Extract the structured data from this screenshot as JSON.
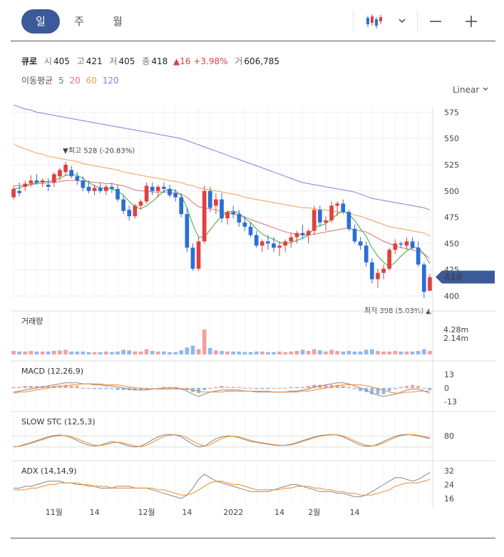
{
  "tabs": {
    "day": "일",
    "week": "주",
    "month": "월"
  },
  "quote": {
    "name": "큐로",
    "open_label": "시",
    "open": "405",
    "high_label": "고",
    "high": "421",
    "low_label": "저",
    "low": "405",
    "close_label": "종",
    "close": "418",
    "change": "▲16 +3.98%",
    "volume_label": "거",
    "volume": "606,785"
  },
  "ma_legend": {
    "title": "이동평균",
    "ma5": "5",
    "ma20": "20",
    "ma60": "60",
    "ma120": "120"
  },
  "scale_mode": "Linear",
  "colors": {
    "up": "#e04040",
    "down": "#2a6fd6",
    "ma5": "#3aaa3a",
    "ma20": "#e07070",
    "ma60": "#f0a050",
    "ma120": "#a070e0",
    "accent": "#3c5a99"
  },
  "chart_data": [
    {
      "type": "candlestick",
      "x_labels": [
        "11월",
        "14",
        "12월",
        "14",
        "2022",
        "14",
        "2월",
        "14"
      ],
      "ylim": [
        398,
        580
      ],
      "y_ticks": [
        400,
        425,
        450,
        475,
        500,
        525,
        550,
        575
      ],
      "current_price": "418",
      "high_marker": "▼최고 528 (-20.83%)",
      "low_marker": "최저 398 (5.03%) ▲",
      "ohlc": [
        [
          494,
          505,
          492,
          502
        ],
        [
          500,
          508,
          495,
          498
        ],
        [
          504,
          510,
          500,
          507
        ],
        [
          507,
          515,
          504,
          510
        ],
        [
          510,
          516,
          506,
          508
        ],
        [
          508,
          512,
          504,
          510
        ],
        [
          506,
          512,
          500,
          504
        ],
        [
          508,
          518,
          504,
          516
        ],
        [
          514,
          522,
          510,
          520
        ],
        [
          518,
          528,
          514,
          525
        ],
        [
          520,
          524,
          512,
          514
        ],
        [
          514,
          518,
          506,
          510
        ],
        [
          510,
          514,
          500,
          503
        ],
        [
          504,
          510,
          498,
          500
        ],
        [
          500,
          506,
          496,
          503
        ],
        [
          503,
          508,
          498,
          500
        ],
        [
          500,
          506,
          496,
          504
        ],
        [
          504,
          508,
          498,
          502
        ],
        [
          502,
          506,
          490,
          492
        ],
        [
          492,
          496,
          478,
          481
        ],
        [
          482,
          486,
          472,
          476
        ],
        [
          476,
          488,
          474,
          486
        ],
        [
          486,
          492,
          482,
          490
        ],
        [
          490,
          508,
          488,
          505
        ],
        [
          504,
          508,
          496,
          500
        ],
        [
          500,
          506,
          494,
          504
        ],
        [
          504,
          508,
          498,
          502
        ],
        [
          502,
          506,
          494,
          496
        ],
        [
          498,
          502,
          490,
          494
        ],
        [
          494,
          498,
          475,
          478
        ],
        [
          478,
          484,
          442,
          446
        ],
        [
          446,
          450,
          424,
          426
        ],
        [
          426,
          456,
          424,
          452
        ],
        [
          452,
          505,
          450,
          500
        ],
        [
          500,
          504,
          480,
          484
        ],
        [
          486,
          498,
          478,
          492
        ],
        [
          492,
          498,
          470,
          474
        ],
        [
          474,
          482,
          468,
          480
        ],
        [
          480,
          486,
          474,
          478
        ],
        [
          478,
          482,
          466,
          470
        ],
        [
          470,
          476,
          462,
          466
        ],
        [
          466,
          470,
          456,
          458
        ],
        [
          458,
          462,
          446,
          448
        ],
        [
          448,
          454,
          442,
          452
        ],
        [
          452,
          458,
          444,
          450
        ],
        [
          450,
          456,
          442,
          446
        ],
        [
          446,
          452,
          438,
          448
        ],
        [
          448,
          454,
          442,
          452
        ],
        [
          452,
          460,
          446,
          456
        ],
        [
          456,
          462,
          450,
          460
        ],
        [
          460,
          468,
          454,
          458
        ],
        [
          458,
          464,
          450,
          462
        ],
        [
          462,
          486,
          458,
          482
        ],
        [
          482,
          486,
          466,
          470
        ],
        [
          470,
          476,
          462,
          472
        ],
        [
          472,
          490,
          470,
          486
        ],
        [
          486,
          490,
          476,
          488
        ],
        [
          488,
          492,
          478,
          480
        ],
        [
          480,
          482,
          462,
          464
        ],
        [
          464,
          468,
          450,
          452
        ],
        [
          452,
          456,
          444,
          448
        ],
        [
          448,
          452,
          428,
          432
        ],
        [
          432,
          436,
          412,
          416
        ],
        [
          416,
          426,
          408,
          422
        ],
        [
          422,
          430,
          416,
          426
        ],
        [
          426,
          446,
          424,
          444
        ],
        [
          444,
          454,
          440,
          450
        ],
        [
          450,
          452,
          446,
          449
        ],
        [
          448,
          456,
          444,
          452
        ],
        [
          452,
          456,
          444,
          446
        ],
        [
          446,
          452,
          428,
          430
        ],
        [
          430,
          432,
          398,
          404
        ],
        [
          405,
          421,
          405,
          418
        ]
      ],
      "ma5": [
        502,
        503,
        505,
        506,
        508,
        509,
        509,
        510,
        512,
        515,
        516,
        515,
        512,
        508,
        505,
        503,
        502,
        502,
        500,
        496,
        490,
        485,
        483,
        486,
        490,
        495,
        500,
        502,
        500,
        496,
        484,
        468,
        456,
        456,
        463,
        470,
        476,
        480,
        481,
        479,
        474,
        470,
        464,
        459,
        456,
        454,
        451,
        450,
        451,
        453,
        455,
        458,
        465,
        467,
        469,
        473,
        478,
        481,
        478,
        472,
        464,
        457,
        446,
        438,
        432,
        428,
        432,
        438,
        443,
        446,
        446,
        440,
        431
      ],
      "ma20": [
        505,
        505,
        506,
        506,
        507,
        507,
        508,
        508,
        509,
        510,
        510,
        510,
        509,
        509,
        508,
        508,
        507,
        507,
        506,
        505,
        503,
        501,
        500,
        500,
        499,
        499,
        499,
        499,
        498,
        497,
        494,
        489,
        485,
        484,
        483,
        482,
        480,
        479,
        478,
        477,
        475,
        473,
        471,
        469,
        467,
        465,
        463,
        461,
        460,
        459,
        458,
        458,
        459,
        460,
        461,
        462,
        463,
        464,
        464,
        463,
        462,
        461,
        458,
        455,
        452,
        450,
        448,
        446,
        445,
        444,
        442,
        440,
        436
      ],
      "ma60": [
        545,
        542,
        540,
        538,
        536,
        535,
        533,
        532,
        531,
        530,
        529,
        528,
        526,
        525,
        524,
        523,
        522,
        521,
        520,
        518,
        517,
        516,
        515,
        514,
        513,
        512,
        511,
        510,
        509,
        508,
        506,
        505,
        503,
        502,
        501,
        500,
        499,
        498,
        497,
        496,
        494,
        493,
        492,
        491,
        490,
        489,
        488,
        487,
        486,
        485,
        484,
        484,
        483,
        482,
        482,
        481,
        480,
        480,
        479,
        477,
        476,
        474,
        472,
        470,
        468,
        466,
        465,
        464,
        463,
        462,
        461,
        460,
        457
      ],
      "ma120": [
        582,
        580,
        578,
        577,
        575,
        574,
        573,
        572,
        571,
        570,
        569,
        568,
        567,
        566,
        565,
        564,
        563,
        562,
        561,
        560,
        559,
        558,
        557,
        556,
        555,
        554,
        553,
        552,
        551,
        550,
        548,
        546,
        544,
        542,
        540,
        538,
        536,
        534,
        532,
        530,
        528,
        526,
        524,
        522,
        520,
        518,
        516,
        514,
        512,
        510,
        508,
        507,
        506,
        505,
        504,
        503,
        502,
        501,
        500,
        499,
        497,
        495,
        493,
        492,
        491,
        490,
        489,
        488,
        487,
        486,
        485,
        484,
        482
      ]
    },
    {
      "type": "bar",
      "title": "거래량",
      "y_ticks": [
        "4.28m",
        "2.14m"
      ],
      "values": [
        0.6,
        0.5,
        0.5,
        0.6,
        0.5,
        0.5,
        0.5,
        0.6,
        0.7,
        0.8,
        0.5,
        0.5,
        0.5,
        0.4,
        0.4,
        0.4,
        0.5,
        0.4,
        0.5,
        0.8,
        0.7,
        0.5,
        0.5,
        0.9,
        0.6,
        0.5,
        0.5,
        0.4,
        0.4,
        0.7,
        1.2,
        1.5,
        0.9,
        4.28,
        1.1,
        0.7,
        0.6,
        0.5,
        0.5,
        0.5,
        0.4,
        0.4,
        0.5,
        0.5,
        0.4,
        0.4,
        0.5,
        0.4,
        0.5,
        0.6,
        0.8,
        0.6,
        0.9,
        0.7,
        0.5,
        0.8,
        0.6,
        0.5,
        0.6,
        0.5,
        0.5,
        0.8,
        0.9,
        0.6,
        0.5,
        0.5,
        0.6,
        0.5,
        0.5,
        0.5,
        0.6,
        0.9,
        0.6
      ]
    },
    {
      "type": "line",
      "title": "MACD (12,26,9)",
      "y_ticks": [
        13,
        0,
        -13
      ],
      "macd": [
        -4,
        -3,
        -2,
        -1,
        0,
        1,
        2,
        3,
        4,
        5,
        5,
        5,
        4,
        4,
        3,
        3,
        2,
        2,
        1,
        0,
        -1,
        -2,
        -2,
        -2,
        -1,
        -1,
        0,
        0,
        0,
        -1,
        -3,
        -6,
        -8,
        -6,
        -4,
        -3,
        -2,
        -2,
        -2,
        -2,
        -3,
        -3,
        -4,
        -4,
        -4,
        -4,
        -4,
        -4,
        -3,
        -3,
        -2,
        -1,
        1,
        2,
        3,
        4,
        5,
        5,
        4,
        2,
        0,
        -2,
        -5,
        -7,
        -8,
        -7,
        -6,
        -4,
        -2,
        -1,
        -1,
        -3,
        -5
      ],
      "signal": [
        -5,
        -4,
        -4,
        -3,
        -2,
        -1,
        0,
        1,
        2,
        2,
        3,
        3,
        4,
        4,
        4,
        4,
        3,
        3,
        3,
        2,
        1,
        0,
        0,
        -1,
        -1,
        -1,
        -1,
        -1,
        -1,
        -1,
        -1,
        -2,
        -3,
        -4,
        -4,
        -4,
        -4,
        -3,
        -3,
        -3,
        -3,
        -3,
        -3,
        -3,
        -3,
        -4,
        -4,
        -4,
        -4,
        -4,
        -3,
        -3,
        -2,
        -1,
        0,
        1,
        2,
        3,
        3,
        3,
        3,
        2,
        1,
        -1,
        -2,
        -4,
        -5,
        -5,
        -4,
        -4,
        -3,
        -3,
        -3
      ]
    },
    {
      "type": "line",
      "title": "SLOW STC (12,5,3)",
      "y_ticks": [
        80
      ],
      "k": [
        20,
        25,
        35,
        45,
        55,
        65,
        75,
        82,
        85,
        80,
        70,
        55,
        40,
        30,
        25,
        30,
        40,
        50,
        45,
        35,
        25,
        20,
        25,
        40,
        60,
        75,
        85,
        88,
        85,
        75,
        55,
        35,
        20,
        25,
        45,
        65,
        75,
        80,
        78,
        70,
        60,
        50,
        45,
        40,
        35,
        30,
        28,
        30,
        35,
        45,
        55,
        65,
        75,
        82,
        85,
        88,
        85,
        75,
        60,
        45,
        30,
        25,
        25,
        35,
        50,
        65,
        78,
        85,
        88,
        85,
        80,
        72,
        65
      ],
      "d": [
        22,
        24,
        30,
        40,
        50,
        60,
        70,
        78,
        82,
        82,
        76,
        65,
        52,
        40,
        30,
        28,
        33,
        42,
        46,
        42,
        34,
        26,
        22,
        30,
        45,
        62,
        76,
        84,
        86,
        82,
        70,
        52,
        35,
        25,
        32,
        50,
        66,
        76,
        79,
        75,
        66,
        56,
        48,
        43,
        38,
        33,
        30,
        29,
        32,
        40,
        50,
        60,
        70,
        78,
        83,
        86,
        86,
        80,
        68,
        53,
        40,
        30,
        26,
        30,
        42,
        57,
        71,
        81,
        86,
        87,
        83,
        77,
        70
      ]
    },
    {
      "type": "line",
      "title": "ADX (14,14,9)",
      "y_ticks": [
        32,
        24,
        16
      ],
      "adx": [
        22,
        22,
        23,
        23,
        24,
        25,
        26,
        26,
        26,
        25,
        25,
        24,
        24,
        23,
        23,
        22,
        22,
        22,
        23,
        23,
        23,
        22,
        22,
        22,
        21,
        20,
        19,
        18,
        17,
        16,
        18,
        22,
        27,
        30,
        28,
        26,
        25,
        24,
        23,
        22,
        21,
        20,
        20,
        20,
        20,
        21,
        22,
        23,
        24,
        24,
        23,
        22,
        21,
        20,
        20,
        20,
        19,
        19,
        18,
        17,
        17,
        18,
        20,
        22,
        24,
        26,
        28,
        28,
        27,
        26,
        27,
        29,
        31
      ],
      "signal": [
        21,
        21,
        21,
        22,
        22,
        23,
        24,
        24,
        25,
        25,
        25,
        25,
        24,
        24,
        23,
        23,
        23,
        22,
        22,
        22,
        22,
        22,
        22,
        22,
        22,
        21,
        21,
        20,
        19,
        18,
        18,
        19,
        21,
        23,
        25,
        26,
        26,
        25,
        24,
        24,
        23,
        22,
        21,
        21,
        21,
        21,
        21,
        22,
        22,
        23,
        23,
        23,
        22,
        22,
        21,
        21,
        20,
        20,
        19,
        19,
        18,
        18,
        18,
        19,
        20,
        21,
        23,
        24,
        25,
        25,
        25,
        26,
        27
      ]
    }
  ]
}
